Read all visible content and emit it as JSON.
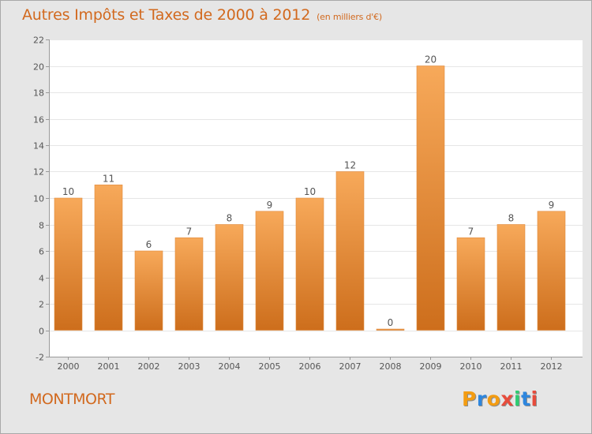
{
  "header": {
    "title": "Autres Impôts et Taxes de 2000 à 2012",
    "unit": "(en milliers d'€)"
  },
  "location": "MONTMORT",
  "brand": {
    "name": "Proxiti",
    "letter_colors": [
      "#f39c12",
      "#2e86de",
      "#f39c12",
      "#e74c3c",
      "#2ecc71",
      "#2e86de",
      "#e74c3c"
    ]
  },
  "colors": {
    "bar_light": "#f7a95a",
    "bar_dark": "#cd6e1c",
    "text_accent": "#d2691e",
    "plot_bg": "#ffffff",
    "page_bg": "#e6e6e6",
    "grid": "#e6e6e6"
  },
  "chart_data": {
    "type": "bar",
    "categories": [
      "2000",
      "2001",
      "2002",
      "2003",
      "2004",
      "2005",
      "2006",
      "2007",
      "2008",
      "2009",
      "2010",
      "2011",
      "2012"
    ],
    "values": [
      10,
      11,
      6,
      7,
      8,
      9,
      10,
      12,
      0,
      20,
      7,
      8,
      9
    ],
    "data_labels": [
      "10",
      "11",
      "6",
      "7",
      "8",
      "9",
      "10",
      "12",
      "0",
      "20",
      "7",
      "8",
      "9"
    ],
    "ylim": [
      -2,
      22
    ],
    "yticks": [
      -2,
      0,
      2,
      4,
      6,
      8,
      10,
      12,
      14,
      16,
      18,
      20,
      22
    ],
    "grid": true,
    "legend": "none"
  }
}
